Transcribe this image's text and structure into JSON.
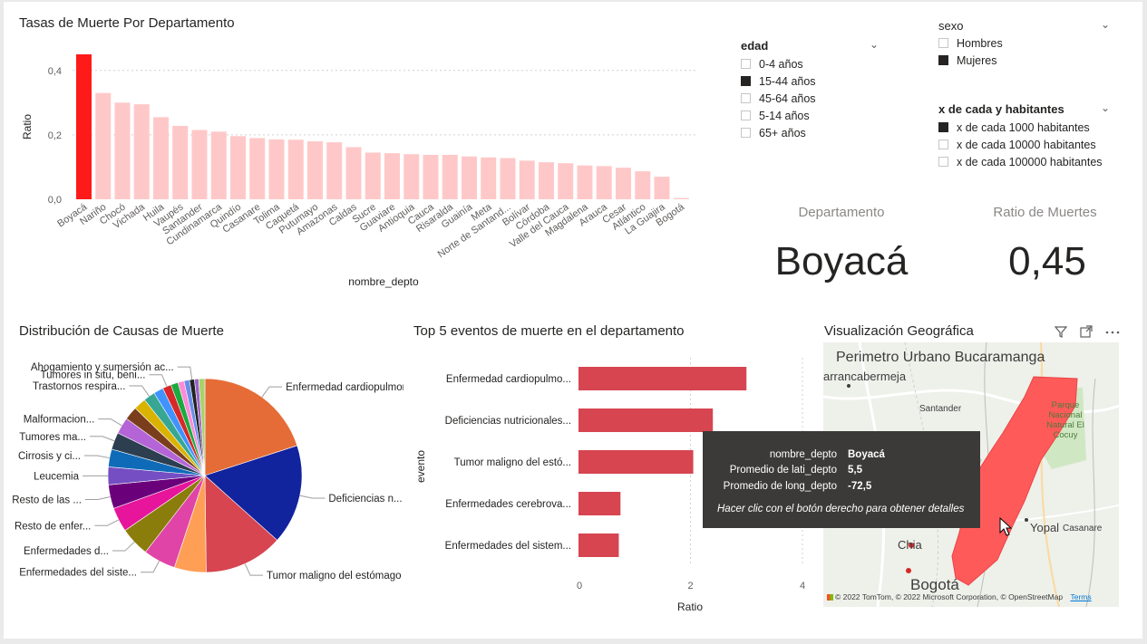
{
  "bar_chart": {
    "title": "Tasas de Muerte Por Departamento",
    "xlabel": "nombre_depto",
    "ylabel": "Ratio",
    "y_ticks": [
      "0,4",
      "0,2",
      "0,0"
    ]
  },
  "chart_data": [
    {
      "type": "bar",
      "title": "Tasas de Muerte Por Departamento",
      "xlabel": "nombre_depto",
      "ylabel": "Ratio",
      "ylim": [
        0,
        0.45
      ],
      "categories": [
        "Boyacá",
        "Nariño",
        "Chocó",
        "Vichada",
        "Huila",
        "Vaupés",
        "Santander",
        "Cundinamarca",
        "Quindío",
        "Casanare",
        "Tolima",
        "Caquetá",
        "Putumayo",
        "Amazonas",
        "Caldas",
        "Sucre",
        "Guaviare",
        "Antioquia",
        "Cauca",
        "Risaralda",
        "Guainía",
        "Meta",
        "Norte de Santand...",
        "Bolívar",
        "Córdoba",
        "Valle del Cauca",
        "Magdalena",
        "Arauca",
        "Cesar",
        "Atlántico",
        "La Guajira",
        "Bogotá"
      ],
      "values": [
        0.45,
        0.33,
        0.3,
        0.295,
        0.255,
        0.228,
        0.215,
        0.21,
        0.196,
        0.19,
        0.186,
        0.185,
        0.18,
        0.177,
        0.162,
        0.145,
        0.143,
        0.14,
        0.138,
        0.138,
        0.133,
        0.13,
        0.128,
        0.12,
        0.115,
        0.112,
        0.105,
        0.103,
        0.098,
        0.087,
        0.07,
        0.004
      ],
      "highlight_color": "#ff1a1a",
      "bar_color": "#ffc8c8",
      "grid": true
    },
    {
      "type": "pie",
      "title": "Distribución de Causas de Muerte",
      "labels": [
        "Enfermedad cardiopulmon...",
        "Deficiencias n...",
        "Tumor maligno del estómago",
        "",
        "Enfermedades del siste...",
        "Enfermedades d...",
        "Resto de enfer...",
        "Resto de las ...",
        "Leucemia",
        "Cirrosis y ci...",
        "Tumores ma...",
        "Malformacion...",
        "",
        "",
        "Trastornos respira...",
        "",
        "Tumores in situ, beni...",
        "",
        "",
        "",
        "Ahogamiento y sumersión ac...",
        "",
        ""
      ],
      "values": [
        19.6,
        16.3,
        12.9,
        5.2,
        5.3,
        4.8,
        4.0,
        3.9,
        2.9,
        2.9,
        2.8,
        2.7,
        2.2,
        2.0,
        1.9,
        1.6,
        1.4,
        1.2,
        1.0,
        0.9,
        0.8,
        0.7,
        1.0
      ],
      "colors": [
        "#e66c37",
        "#12239e",
        "#d64550",
        "#ff9f55",
        "#e044a7",
        "#8b7d0b",
        "#e6159c",
        "#6b007b",
        "#744ec2",
        "#0f6bb8",
        "#2c3e50",
        "#b464d6",
        "#7a3e1d",
        "#d9b300",
        "#37a794",
        "#4092ff",
        "#d62828",
        "#1aab40",
        "#ff8ad6",
        "#6c8ee9",
        "#222222",
        "#9a64c8",
        "#a9d26a"
      ]
    },
    {
      "type": "bar",
      "orientation": "horizontal",
      "title": "Top 5 eventos de muerte en el departamento",
      "xlabel": "Ratio",
      "ylabel": "evento",
      "categories": [
        "Enfermedad cardiopulmo...",
        "Deficiencias nutricionales...",
        "Tumor maligno del estó...",
        "Enfermedades cerebrova...",
        "Enfermedades del sistem..."
      ],
      "values": [
        3.0,
        2.4,
        2.05,
        0.75,
        0.72
      ],
      "x_ticks": [
        "0",
        "2",
        "4"
      ],
      "xlim": [
        0,
        4
      ],
      "bar_color": "#d64550",
      "grid": true
    }
  ],
  "slicers": {
    "edad": {
      "title": "edad",
      "options": [
        {
          "label": "0-4 años",
          "checked": false
        },
        {
          "label": "15-44 años",
          "checked": true
        },
        {
          "label": "45-64 años",
          "checked": false
        },
        {
          "label": "5-14 años",
          "checked": false
        },
        {
          "label": "65+ años",
          "checked": false
        }
      ]
    },
    "sexo": {
      "title": "sexo",
      "options": [
        {
          "label": "Hombres",
          "checked": false
        },
        {
          "label": "Mujeres",
          "checked": true
        }
      ]
    },
    "habitantes": {
      "title": "x de cada y habitantes",
      "options": [
        {
          "label": "x de cada 1000 habitantes",
          "checked": true
        },
        {
          "label": "x de cada 10000 habitantes",
          "checked": false
        },
        {
          "label": "x de cada 100000 habitantes",
          "checked": false
        }
      ]
    }
  },
  "cards": {
    "departamento": {
      "label": "Departamento",
      "value": "Boyacá"
    },
    "ratio": {
      "label": "Ratio de Muertes",
      "value": "0,45"
    }
  },
  "pie_title": "Distribución de Causas de Muerte",
  "hbar": {
    "title": "Top 5 eventos de muerte en el departamento",
    "ylabel": "evento",
    "xlabel": "Ratio"
  },
  "map": {
    "title": "Visualización Geográfica",
    "labels": {
      "bucaramanga": "Perimetro Urbano Bucaramanga",
      "barranca": "arrancabermeja",
      "santander": "Santander",
      "parque": "Parque Nacional Natural El Cocuy",
      "yopal": "Yopal",
      "casanare": "Casanare",
      "chia": "Chia",
      "bogota": "Bogotá"
    },
    "attribution": "© 2022 TomTom, © 2022 Microsoft Corporation, © OpenStreetMap",
    "terms": "Terms",
    "region_color": "#ff5a5a"
  },
  "tooltip": {
    "rows": [
      {
        "key": "nombre_depto",
        "value": "Boyacá"
      },
      {
        "key": "Promedio de lati_depto",
        "value": "5,5"
      },
      {
        "key": "Promedio de long_depto",
        "value": "-72,5"
      }
    ],
    "hint": "Hacer clic con el botón derecho para obtener detalles"
  }
}
